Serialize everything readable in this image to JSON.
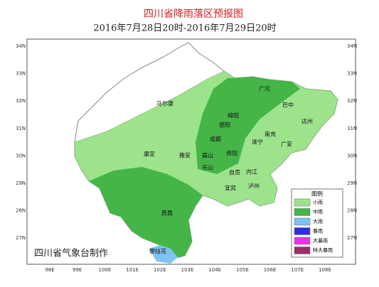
{
  "header": {
    "title": "四川省降雨落区预报图",
    "subtitle": "2016年7月28日20时-2016年7月29日20时"
  },
  "lat_labels": [
    "34N",
    "33N",
    "32N",
    "31N",
    "30N",
    "29N",
    "28N",
    "27N"
  ],
  "lon_labels": [
    "98E",
    "99E",
    "100E",
    "101E",
    "102E",
    "103E",
    "104E",
    "105E",
    "106E",
    "107E",
    "108E"
  ],
  "cities": [
    "马尔康",
    "广元",
    "巴中",
    "绵阳",
    "德阳",
    "成都",
    "南充",
    "达州",
    "遂宁",
    "广安",
    "康定",
    "雅安",
    "眉山",
    "资阳",
    "乐山",
    "自贡",
    "内江",
    "宜宾",
    "泸州",
    "西昌",
    "攀枝花"
  ],
  "legend": {
    "title": "图例",
    "items": [
      {
        "label": "小雨",
        "color": "#9de38c"
      },
      {
        "label": "中雨",
        "color": "#45b548"
      },
      {
        "label": "大雨",
        "color": "#7ec3f2"
      },
      {
        "label": "暴雨",
        "color": "#2f2fe0"
      },
      {
        "label": "大暴雨",
        "color": "#ee30ea"
      },
      {
        "label": "特大暴雨",
        "color": "#9a2f6c"
      }
    ]
  },
  "credit": "四川省气象台制作"
}
